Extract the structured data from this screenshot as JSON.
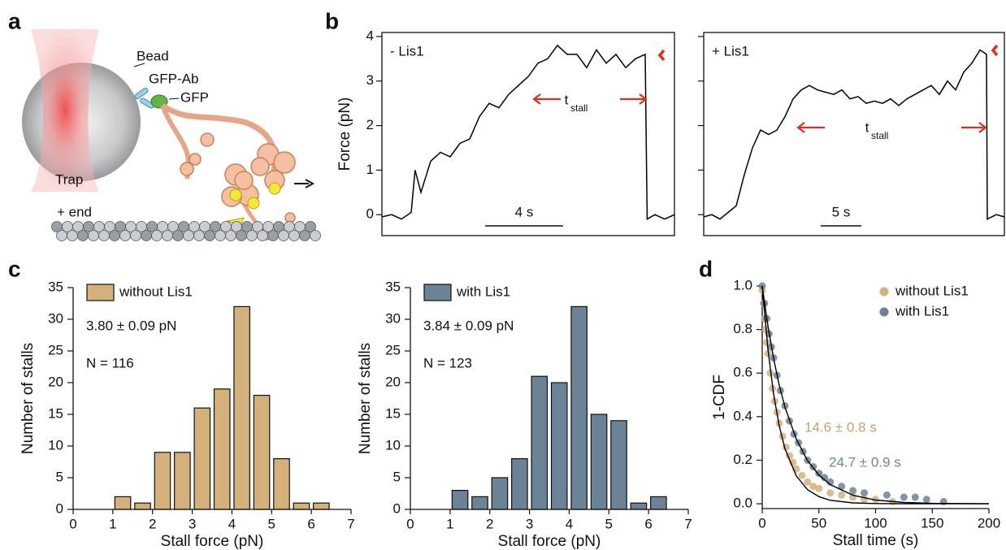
{
  "figure": {
    "panel_labels": [
      "a",
      "b",
      "c",
      "d"
    ]
  },
  "diagram": {
    "bead": "Bead",
    "antibody": "GFP-Ab",
    "gfp": "GFP",
    "trap": "Trap",
    "end": "+ end"
  },
  "chart_data": [
    {
      "type": "line",
      "label": "- Lis1",
      "ylabel": "Force (pN)",
      "color": "#000000",
      "x": [
        0,
        0.5,
        1,
        1.5,
        1.7,
        2,
        2.5,
        3,
        3.5,
        4,
        4.5,
        5,
        5.5,
        6,
        6.5,
        7,
        7.5,
        8,
        8.5,
        9,
        9.5,
        10,
        10.5,
        11,
        11.5,
        12,
        12.5,
        13,
        13.5,
        13.6,
        14,
        14.5,
        15
      ],
      "values": [
        -0.05,
        0.0,
        -0.1,
        0.05,
        1.0,
        0.5,
        1.2,
        1.4,
        1.3,
        1.6,
        1.7,
        2.2,
        2.5,
        2.4,
        2.7,
        2.9,
        3.1,
        3.4,
        3.5,
        3.8,
        3.6,
        3.6,
        3.3,
        3.7,
        3.4,
        3.6,
        3.3,
        3.5,
        3.6,
        -0.1,
        0.0,
        -0.1,
        0.0
      ],
      "xlim": [
        0,
        15
      ],
      "ylim": [
        -0.47,
        4.09
      ],
      "yticks": [
        0,
        1,
        2,
        3,
        4
      ],
      "show_ytick_labels": true,
      "scale_bar": {
        "value": 4,
        "label": "4 s"
      },
      "t_label": "t",
      "t_sub": "stall"
    },
    {
      "type": "line",
      "label": "+ Lis1",
      "color": "#000000",
      "x": [
        0,
        1,
        2,
        3,
        4,
        5,
        6,
        7,
        8,
        9,
        10,
        11,
        12,
        13,
        14,
        15,
        16,
        17,
        18,
        19,
        20,
        21,
        22,
        23,
        24,
        25,
        26,
        27,
        28,
        29,
        30,
        31,
        32,
        33,
        34,
        34.8,
        34.9,
        36,
        37
      ],
      "values": [
        -0.05,
        0.0,
        -0.1,
        0.05,
        0.2,
        0.9,
        1.5,
        1.9,
        1.8,
        1.9,
        2.2,
        2.6,
        2.8,
        2.9,
        2.8,
        2.75,
        2.7,
        2.8,
        2.6,
        2.65,
        2.5,
        2.55,
        2.5,
        2.6,
        2.45,
        2.6,
        2.7,
        2.8,
        2.9,
        2.7,
        3.0,
        2.8,
        3.2,
        3.4,
        3.7,
        3.6,
        -0.1,
        0.0,
        -0.05
      ],
      "xlim": [
        0,
        37
      ],
      "ylim": [
        -0.47,
        4.09
      ],
      "yticks": [
        0,
        1,
        2,
        3,
        4
      ],
      "show_ytick_labels": false,
      "scale_bar": {
        "value": 5,
        "label": "5 s"
      },
      "t_label": "t",
      "t_sub": "stall"
    },
    {
      "type": "histogram",
      "xlabel": "Stall force (pN)",
      "ylabel": "Number of stalls",
      "bins": [
        1,
        1.5,
        2,
        2.5,
        3,
        3.5,
        4,
        4.5,
        5,
        5.5,
        6,
        6.5
      ],
      "series": [
        {
          "name": "without Lis1",
          "color": "#d4b07a",
          "values": [
            2,
            1,
            9,
            9,
            16,
            19,
            32,
            18,
            8,
            1,
            1
          ]
        }
      ],
      "annotations": [
        "3.80 ± 0.09 pN",
        "N = 116"
      ],
      "xlim": [
        0,
        7
      ],
      "xticks": [
        0,
        1,
        2,
        3,
        4,
        5,
        6,
        7
      ],
      "ylim": [
        0,
        35
      ],
      "yticks": [
        0,
        5,
        10,
        15,
        20,
        25,
        30,
        35
      ]
    },
    {
      "type": "histogram",
      "xlabel": "Stall force (pN)",
      "ylabel": "Number of stalls",
      "bins": [
        1,
        1.5,
        2,
        2.5,
        3,
        3.5,
        4,
        4.5,
        5,
        5.5,
        6,
        6.5
      ],
      "series": [
        {
          "name": "with Lis1",
          "color": "#6c8296",
          "values": [
            3,
            2,
            5,
            8,
            21,
            20,
            32,
            15,
            14,
            1,
            2
          ]
        }
      ],
      "annotations": [
        "3.84 ± 0.09 pN",
        "N = 123"
      ],
      "xlim": [
        0,
        7
      ],
      "xticks": [
        0,
        1,
        2,
        3,
        4,
        5,
        6,
        7
      ],
      "ylim": [
        0,
        35
      ],
      "yticks": [
        0,
        5,
        10,
        15,
        20,
        25,
        30,
        35
      ]
    },
    {
      "type": "scatter",
      "xlabel": "Stall time (s)",
      "ylabel": "1-CDF",
      "series": [
        {
          "name": "without Lis1",
          "color": "#d4b07a",
          "x": [
            0,
            1,
            2,
            3,
            4,
            5,
            7,
            9,
            11,
            13,
            15,
            18,
            21,
            24,
            27,
            30,
            35,
            40,
            45,
            50,
            60,
            70,
            80,
            90,
            100,
            115
          ],
          "values": [
            0.98,
            0.92,
            0.85,
            0.8,
            0.74,
            0.69,
            0.6,
            0.53,
            0.47,
            0.42,
            0.37,
            0.31,
            0.26,
            0.22,
            0.19,
            0.16,
            0.13,
            0.1,
            0.08,
            0.07,
            0.05,
            0.04,
            0.03,
            0.02,
            0.02,
            0.01
          ]
        },
        {
          "name": "with Lis1",
          "color": "#6c8296",
          "x": [
            0,
            2,
            4,
            6,
            8,
            10,
            13,
            16,
            20,
            24,
            28,
            32,
            36,
            40,
            45,
            50,
            55,
            60,
            70,
            80,
            90,
            110,
            125,
            135,
            145,
            160
          ],
          "values": [
            1.0,
            0.92,
            0.85,
            0.78,
            0.72,
            0.67,
            0.59,
            0.52,
            0.45,
            0.38,
            0.32,
            0.28,
            0.24,
            0.2,
            0.17,
            0.14,
            0.12,
            0.1,
            0.08,
            0.06,
            0.05,
            0.04,
            0.03,
            0.03,
            0.02,
            0.01
          ]
        }
      ],
      "fits": [
        {
          "color": "#000000",
          "x": [
            0,
            5,
            10,
            15,
            20,
            30,
            40,
            50,
            60,
            80,
            100,
            125,
            150,
            175,
            200
          ],
          "values": [
            1,
            0.71,
            0.504,
            0.358,
            0.254,
            0.128,
            0.065,
            0.033,
            0.016,
            0.004,
            0.001,
            0.0,
            0.0,
            0.0,
            0.0
          ]
        },
        {
          "color": "#000000",
          "x": [
            0,
            5,
            10,
            15,
            20,
            30,
            40,
            50,
            60,
            80,
            100,
            125,
            150,
            175,
            200
          ],
          "values": [
            1,
            0.817,
            0.667,
            0.545,
            0.445,
            0.297,
            0.198,
            0.132,
            0.088,
            0.039,
            0.017,
            0.006,
            0.002,
            0.001,
            0.0
          ]
        }
      ],
      "annotations": [
        {
          "text": "14.6 ± 0.8 s",
          "color": "#c8a367"
        },
        {
          "text": "24.7 ± 0.9 s",
          "color": "#6f88a0"
        }
      ],
      "xlim": [
        0,
        200
      ],
      "xticks": [
        0,
        50,
        100,
        150,
        200
      ],
      "ylim": [
        -0.022,
        1.0
      ],
      "yticks": [
        {
          "value": 0,
          "label": "0.0"
        },
        {
          "value": 0.2,
          "label": "0.2"
        },
        {
          "value": 0.4,
          "label": "0.4"
        },
        {
          "value": 0.6,
          "label": "0.6"
        },
        {
          "value": 0.8,
          "label": "0.8"
        },
        {
          "value": 1,
          "label": "1.0"
        }
      ]
    }
  ]
}
